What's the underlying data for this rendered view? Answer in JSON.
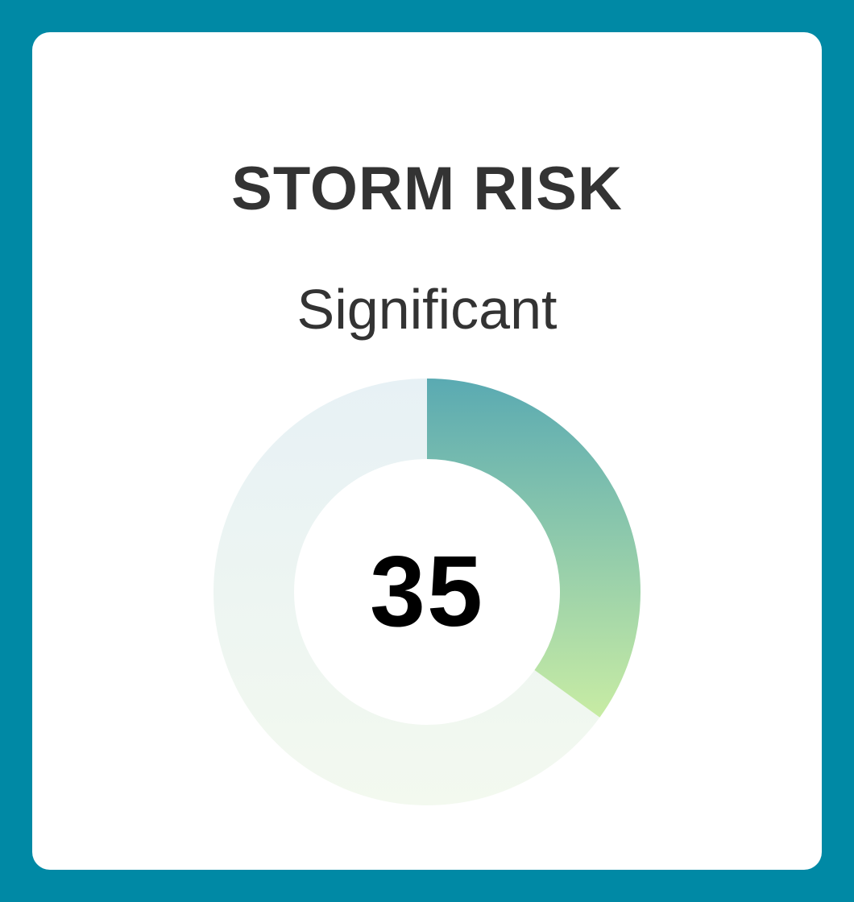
{
  "card": {
    "title": "STORM RISK",
    "risk_level": "Significant",
    "score": "35"
  },
  "gauge": {
    "value": 35,
    "max": 100,
    "fill_fraction": 0.35,
    "colors": {
      "frame": "#0089a5",
      "fill_start": "#5aaab2",
      "fill_end": "#c8eca4",
      "track_start": "#e7f1f5",
      "track_end": "#f3f9ef"
    }
  }
}
